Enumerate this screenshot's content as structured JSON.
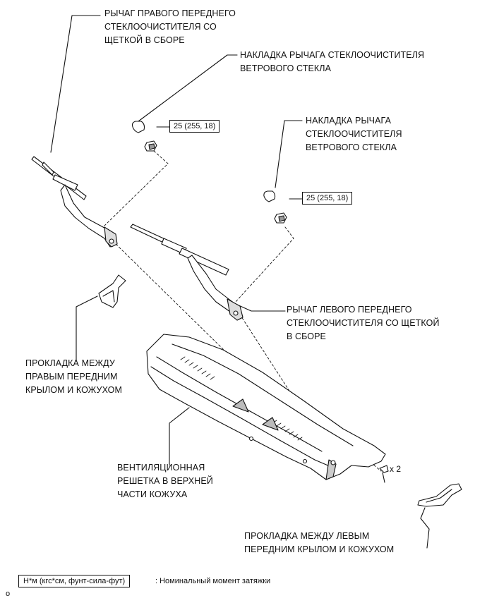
{
  "labels": {
    "right_wiper_arm": [
      "РЫЧАГ ПРАВОГО ПЕРЕДНЕГО",
      "СТЕКЛООЧИСТИТЕЛЯ СО",
      "ЩЕТКОЙ В СБОРЕ"
    ],
    "cap_top": [
      "НАКЛАДКА РЫЧАГА СТЕКЛООЧИСТИТЕЛЯ",
      "ВЕТРОВОГО СТЕКЛА"
    ],
    "cap_right": [
      "НАКЛАДКА РЫЧАГА",
      "СТЕКЛООЧИСТИТЕЛЯ",
      "ВЕТРОВОГО СТЕКЛА"
    ],
    "left_wiper_arm": [
      "РЫЧАГ ЛЕВОГО ПЕРЕДНЕГО",
      "СТЕКЛООЧИСТИТЕЛЯ СО ЩЕТКОЙ",
      "В СБОРЕ"
    ],
    "right_seal": [
      "ПРОКЛАДКА МЕЖДУ",
      "ПРАВЫМ ПЕРЕДНИМ",
      "КРЫЛОМ И КОЖУХОМ"
    ],
    "cowl_louver": [
      "ВЕНТИЛЯЦИОННАЯ",
      "РЕШЕТКА В ВЕРХНЕЙ",
      "ЧАСТИ КОЖУХА"
    ],
    "left_seal": [
      "ПРОКЛАДКА МЕЖДУ ЛЕВЫМ",
      "ПЕРЕДНИМ КРЫЛОМ И КОЖУХОМ"
    ]
  },
  "torque_value": "25 (255, 18)",
  "clip_count": "x 2",
  "legend": {
    "units": "Н*м (кгс*см, фунт-сила-фут)",
    "description": ": Номинальный момент затяжки"
  },
  "corner_mark": "o"
}
